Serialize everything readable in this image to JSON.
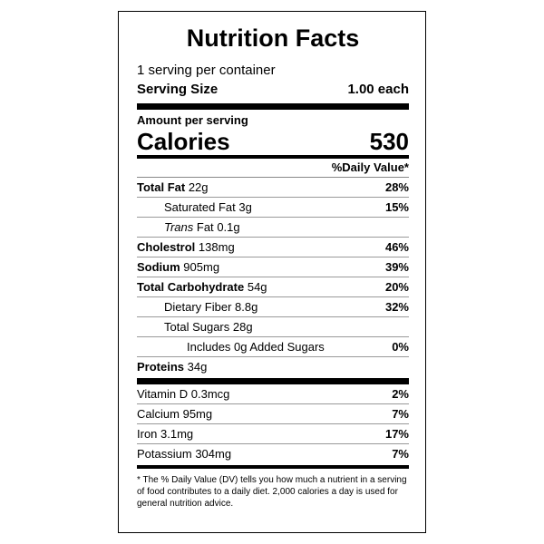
{
  "title": "Nutrition Facts",
  "servings_per_container": "1 serving per container",
  "serving_size_label": "Serving Size",
  "serving_size_value": "1.00 each",
  "amount_per_serving": "Amount per serving",
  "calories_label": "Calories",
  "calories_value": "530",
  "daily_value_header": "%Daily Value*",
  "nutrients": [
    {
      "name": "Total Fat",
      "amount": "22g",
      "dv": "28%"
    },
    {
      "name": "Saturated Fat",
      "amount": "3g",
      "dv": "15%"
    },
    {
      "name": "Trans",
      "suffix": "Fat",
      "amount": "0.1g",
      "dv": ""
    },
    {
      "name": "Cholestrol",
      "amount": "138mg",
      "dv": "46%"
    },
    {
      "name": "Sodium",
      "amount": "905mg",
      "dv": "39%"
    },
    {
      "name": "Total Carbohydrate",
      "amount": "54g",
      "dv": "20%"
    },
    {
      "name": "Dietary Fiber",
      "amount": "8.8g",
      "dv": "32%"
    },
    {
      "name": "Total Sugars",
      "amount": "28g",
      "dv": ""
    },
    {
      "name": "Includes 0g Added Sugars",
      "amount": "",
      "dv": "0%"
    },
    {
      "name": "Proteins",
      "amount": "34g",
      "dv": ""
    }
  ],
  "vitamins": [
    {
      "name": "Vitamin D",
      "amount": "0.3mcg",
      "dv": "2%"
    },
    {
      "name": "Calcium",
      "amount": "95mg",
      "dv": "7%"
    },
    {
      "name": "Iron",
      "amount": "3.1mg",
      "dv": "17%"
    },
    {
      "name": "Potassium",
      "amount": "304mg",
      "dv": "7%"
    }
  ],
  "footnote": "* The % Daily Value (DV) tells you how much a nutrient in a serving of food contributes to a daily diet. 2,000 calories a day is used for general nutrition advice."
}
